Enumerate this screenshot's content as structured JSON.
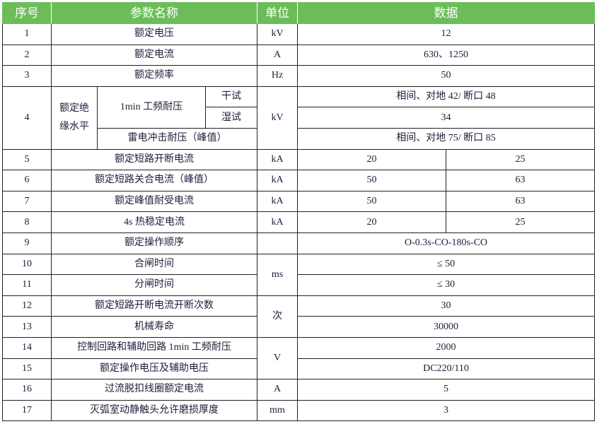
{
  "header": {
    "seq": "序号",
    "name": "参数名称",
    "unit": "单位",
    "data": "数据"
  },
  "colors": {
    "header_bg": "#6cbd5a",
    "header_text": "#ffffff"
  },
  "rows": [
    {
      "seq": "1",
      "name": "额定电压",
      "unit": "kV",
      "value": "12"
    },
    {
      "seq": "2",
      "name": "额定电流",
      "unit": "A",
      "value": "630、1250"
    },
    {
      "seq": "3",
      "name": "额定频率",
      "unit": "Hz",
      "value": "50"
    },
    {
      "seq": "4",
      "group": "额定绝缘水平",
      "sub": "1min 工频耐压",
      "dry": "干试",
      "wet": "湿试",
      "lightning": "雷电冲击耐压（峰值）",
      "unit": "kV",
      "dry_value": "相间、对地 42/ 断口 48",
      "wet_value": "34",
      "lightning_value": "相间、对地 75/ 断口 85"
    },
    {
      "seq": "5",
      "name": "额定短路开断电流",
      "unit": "kA",
      "v1": "20",
      "v2": "25"
    },
    {
      "seq": "6",
      "name": "额定短路关合电流（峰值）",
      "unit": "kA",
      "v1": "50",
      "v2": "63"
    },
    {
      "seq": "7",
      "name": "额定峰值耐受电流",
      "unit": "kA",
      "v1": "50",
      "v2": "63"
    },
    {
      "seq": "8",
      "name": "4s 热稳定电流",
      "unit": "kA",
      "v1": "20",
      "v2": "25"
    },
    {
      "seq": "9",
      "name": "额定操作顺序",
      "unit": "",
      "value": "O-0.3s-CO-180s-CO"
    },
    {
      "seq": "10",
      "name": "合闸时间",
      "unit": "ms",
      "value": "≤ 50"
    },
    {
      "seq": "11",
      "name": "分闸时间",
      "value": "≤ 30"
    },
    {
      "seq": "12",
      "name": "额定短路开断电流开断次数",
      "unit": "次",
      "value": "30"
    },
    {
      "seq": "13",
      "name": "机械寿命",
      "value": "30000"
    },
    {
      "seq": "14",
      "name": "控制回路和辅助回路 1min 工频耐压",
      "unit": "V",
      "value": "2000"
    },
    {
      "seq": "15",
      "name": "额定操作电压及辅助电压",
      "value": "DC220/110"
    },
    {
      "seq": "16",
      "name": "过流脱扣线圈额定电流",
      "unit": "A",
      "value": "5"
    },
    {
      "seq": "17",
      "name": "灭弧室动静触头允许磨损厚度",
      "unit": "mm",
      "value": "3"
    }
  ]
}
